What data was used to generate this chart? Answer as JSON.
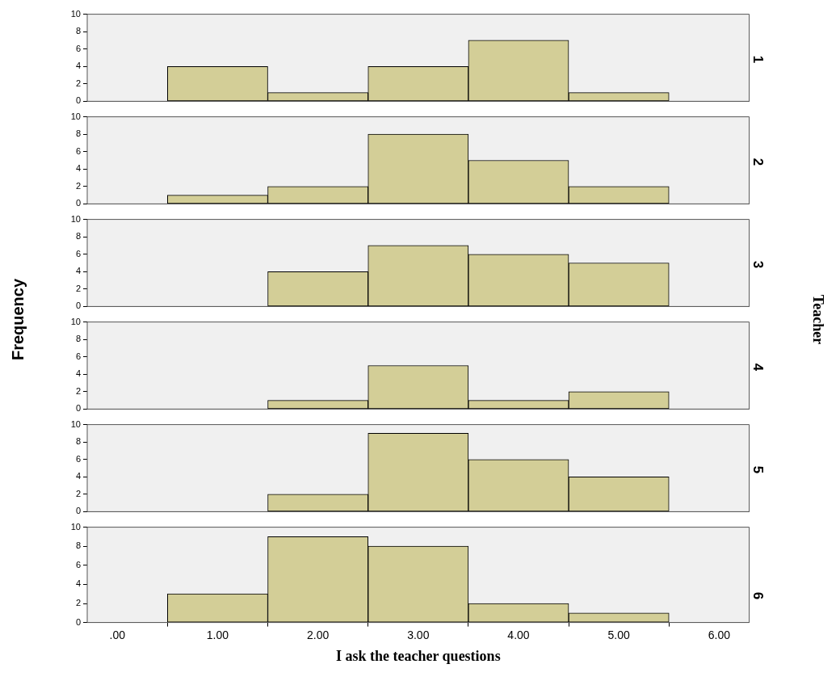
{
  "chart_data": [
    {
      "type": "histogram",
      "title": "1",
      "bins": [
        0.5,
        1.5,
        2.5,
        3.5,
        4.5,
        5.5
      ],
      "values": [
        4,
        1,
        4,
        7,
        1
      ],
      "color": "#d3ce97",
      "xlim": [
        -0.3,
        6.3
      ],
      "ylim": [
        0,
        10
      ],
      "yticks": [
        0,
        2,
        4,
        6,
        8,
        10
      ],
      "tick_labels": "y"
    },
    {
      "type": "histogram",
      "title": "2",
      "bins": [
        0.5,
        1.5,
        2.5,
        3.5,
        4.5,
        5.5
      ],
      "values": [
        1,
        2,
        8,
        5,
        2
      ],
      "color": "#d3ce97",
      "xlim": [
        -0.3,
        6.3
      ],
      "ylim": [
        0,
        10
      ],
      "yticks": [
        0,
        2,
        4,
        6,
        8,
        10
      ],
      "tick_labels": "y"
    },
    {
      "type": "histogram",
      "title": "3",
      "ylabel": "Frequency",
      "y2label": "Teacher",
      "bins": [
        1.5,
        2.5,
        3.5,
        4.5,
        5.5
      ],
      "values": [
        4,
        7,
        6,
        5
      ],
      "color": "#d3ce97",
      "xlim": [
        -0.3,
        6.3
      ],
      "ylim": [
        0,
        10
      ],
      "yticks": [
        0,
        2,
        4,
        6,
        8,
        10
      ],
      "tick_labels": "y"
    },
    {
      "type": "histogram",
      "title": "4",
      "bins": [
        1.5,
        2.5,
        3.5,
        4.5,
        5.5
      ],
      "values": [
        1,
        5,
        1,
        2
      ],
      "color": "#d3ce97",
      "xlim": [
        -0.3,
        6.3
      ],
      "ylim": [
        0,
        10
      ],
      "yticks": [
        0,
        2,
        4,
        6,
        8,
        10
      ],
      "tick_labels": "y"
    },
    {
      "type": "histogram",
      "title": "5",
      "bins": [
        1.5,
        2.5,
        3.5,
        4.5,
        5.5
      ],
      "values": [
        2,
        9,
        6,
        4
      ],
      "color": "#d3ce97",
      "xlim": [
        -0.3,
        6.3
      ],
      "ylim": [
        0,
        10
      ],
      "yticks": [
        0,
        2,
        4,
        6,
        8,
        10
      ],
      "tick_labels": "y"
    },
    {
      "type": "histogram",
      "title": "6",
      "xlabel": "I ask the teacher questions",
      "bins": [
        0.5,
        1.5,
        2.5,
        3.5,
        4.5,
        5.5
      ],
      "values": [
        3,
        9,
        8,
        2,
        1
      ],
      "color": "#d3ce97",
      "xlim": [
        -0.3,
        6.3
      ],
      "xticks": [
        {
          "value": 0,
          "label": ".00"
        },
        {
          "value": 1,
          "label": "1.00"
        },
        {
          "value": 2,
          "label": "2.00"
        },
        {
          "value": 3,
          "label": "3.00"
        },
        {
          "value": 4,
          "label": "4.00"
        },
        {
          "value": 5,
          "label": "5.00"
        },
        {
          "value": 6,
          "label": "6.00"
        }
      ],
      "ylim": [
        0,
        10
      ],
      "yticks": [
        0,
        2,
        4,
        6,
        8,
        10
      ]
    }
  ]
}
